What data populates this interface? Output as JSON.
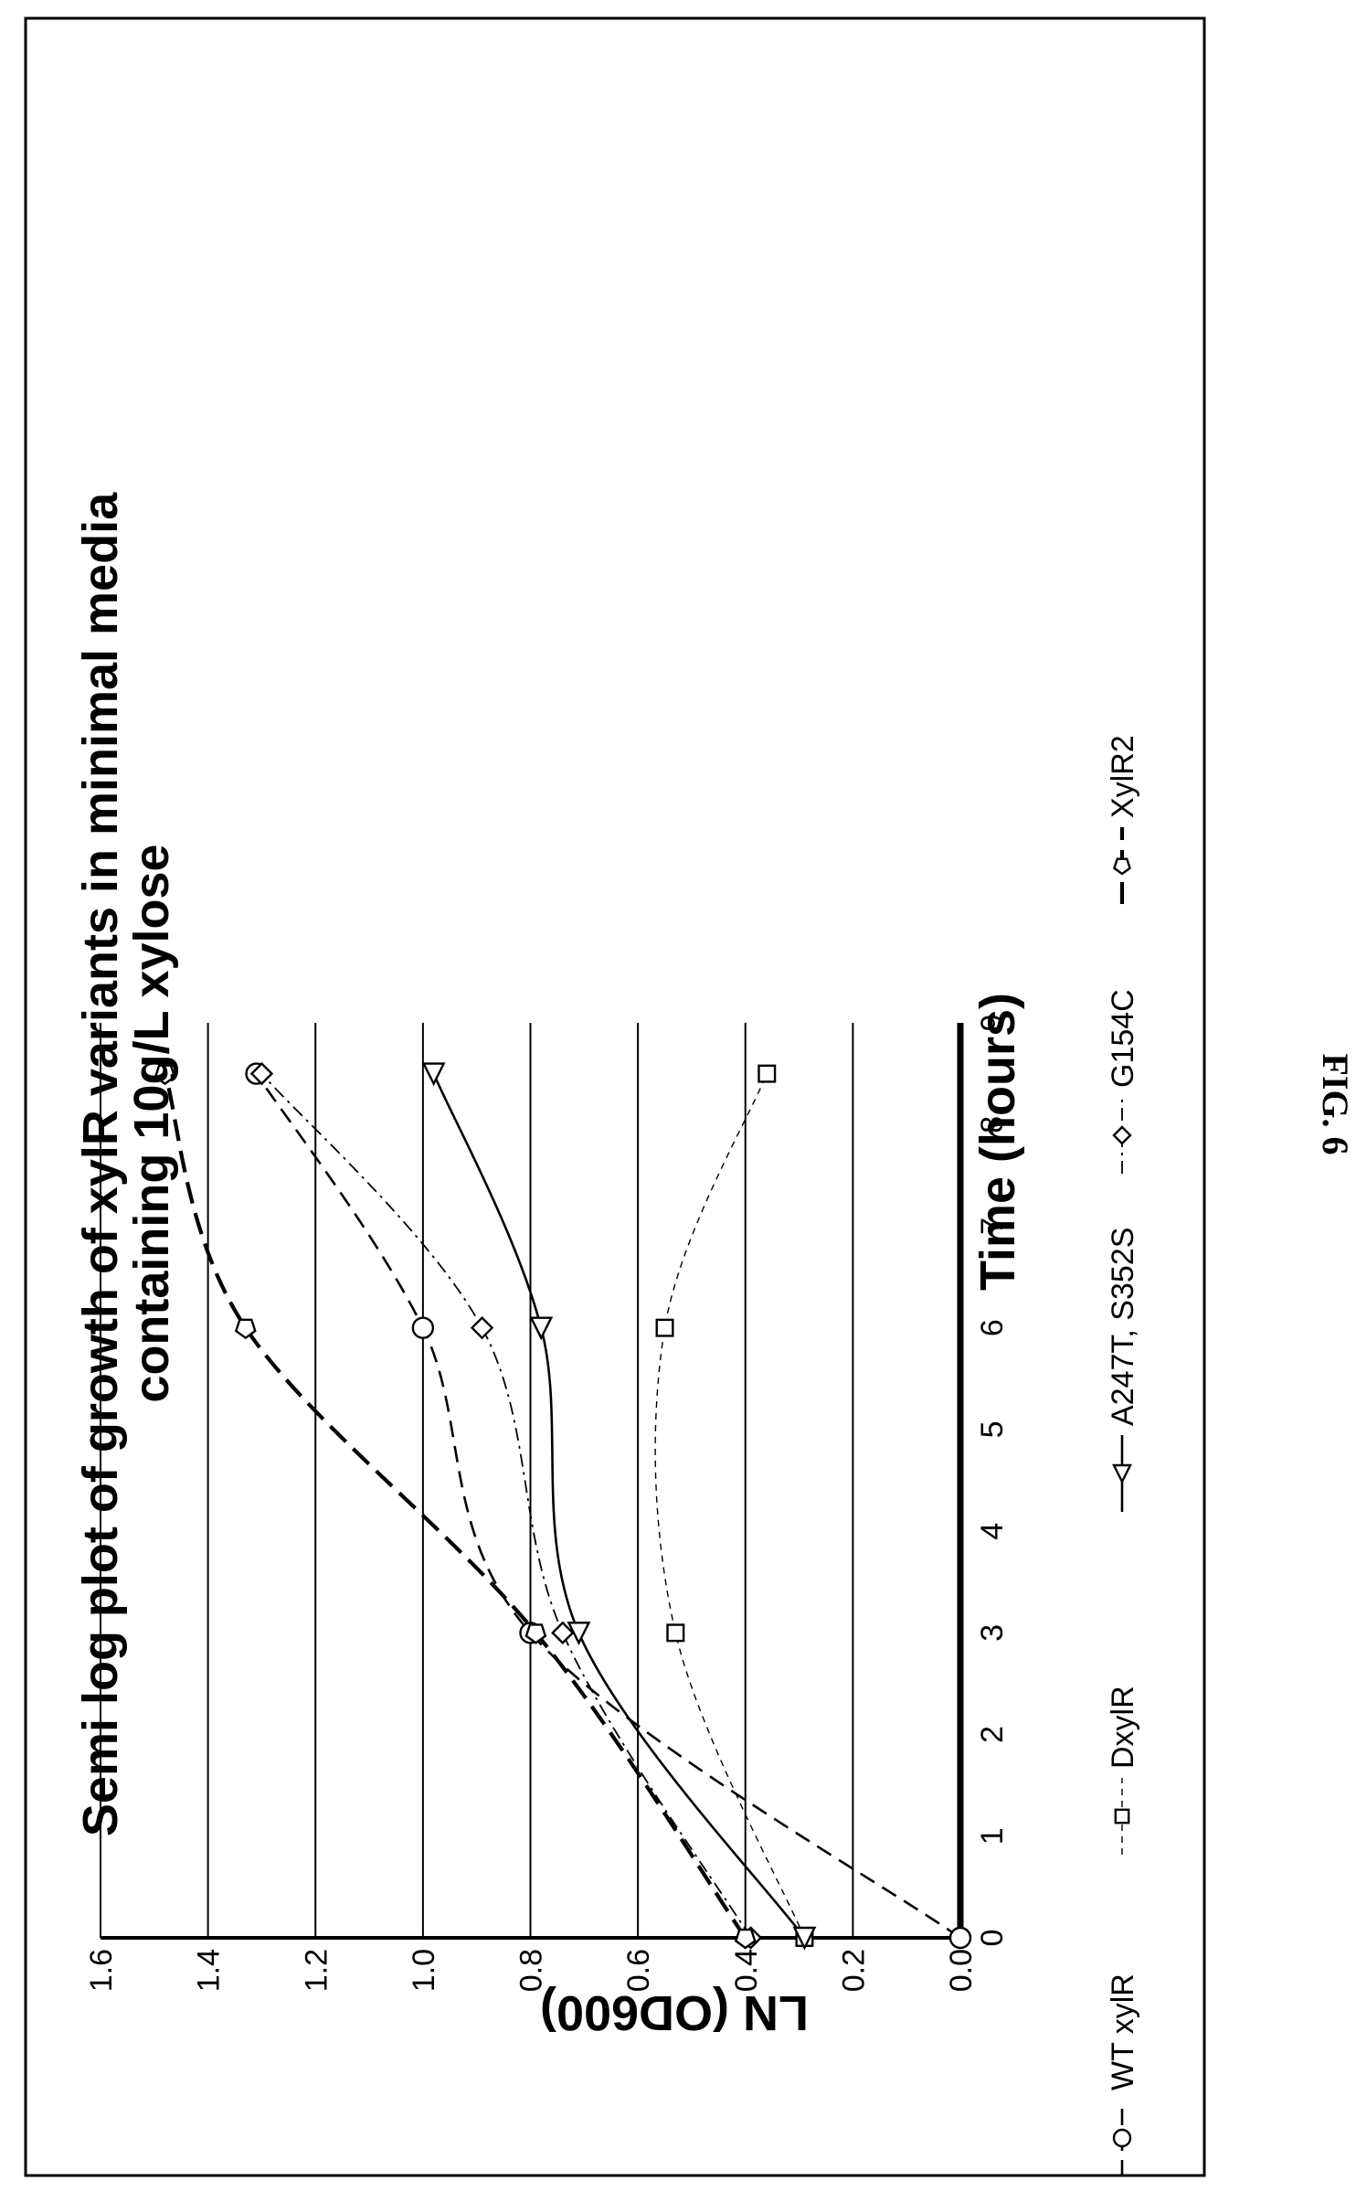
{
  "figure_label": "FIG. 6",
  "chart_data": {
    "type": "line",
    "title": "Semi log plot of growth of xylR variants in minimal media containing 10g/L xylose",
    "title_lines": [
      "Semi log plot of growth of xylR variants in minimal media",
      "containing 10g/L xylose"
    ],
    "xlabel": "Time (hours)",
    "ylabel": "LN (OD600)",
    "xlim": [
      0,
      9
    ],
    "ylim": [
      0.0,
      1.6
    ],
    "xticks": [
      "0",
      "1",
      "2",
      "3",
      "4",
      "5",
      "6",
      "7",
      "8",
      "9"
    ],
    "yticks": [
      "0.0",
      "0.2",
      "0.4",
      "0.6",
      "0.8",
      "1.0",
      "1.2",
      "1.4",
      "1.6"
    ],
    "grid": "horizontal",
    "legend_position": "bottom",
    "x": [
      0,
      3,
      6,
      8.5
    ],
    "series": [
      {
        "name": "WT xylR",
        "marker": "circle",
        "dash": "long-dash",
        "values": [
          0.0,
          0.8,
          1.0,
          1.31
        ]
      },
      {
        "name": "DxylR",
        "marker": "square",
        "dash": "short-dash-thin",
        "values": [
          0.29,
          0.53,
          0.55,
          0.36
        ]
      },
      {
        "name": "A247T, S352S",
        "marker": "triangle",
        "dash": "solid",
        "values": [
          0.29,
          0.71,
          0.78,
          0.98
        ]
      },
      {
        "name": "G154C",
        "marker": "diamond",
        "dash": "dash-dot",
        "values": [
          0.39,
          0.74,
          0.89,
          1.3
        ]
      },
      {
        "name": "XylR2",
        "marker": "pentagon",
        "dash": "heavy-dash",
        "values": [
          0.4,
          0.79,
          1.33,
          1.48
        ]
      }
    ]
  }
}
